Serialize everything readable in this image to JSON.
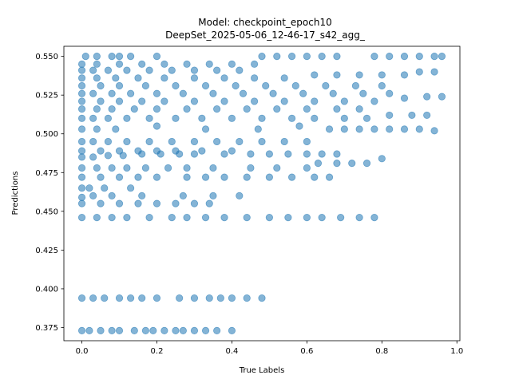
{
  "chart_data": {
    "type": "scatter",
    "title_line1": "Model: checkpoint_epoch10",
    "title_line2": "DeepSet_2025-05-06_12-46-17_s42_agg_",
    "xlabel": "True Labels",
    "ylabel": "Predictions",
    "xlim": [
      -0.048,
      1.008
    ],
    "ylim": [
      0.3665,
      0.5565
    ],
    "xticks": [
      "0.0",
      "0.2",
      "0.4",
      "0.6",
      "0.8",
      "1.0"
    ],
    "yticks": [
      "0.375",
      "0.400",
      "0.425",
      "0.450",
      "0.475",
      "0.500",
      "0.525",
      "0.550"
    ],
    "grid": false,
    "point_color": "#1f77b4",
    "point_alpha": 0.55,
    "series": [
      {
        "x_range": [
          0.0,
          0.96
        ],
        "points": [
          [
            0.0,
            0.373
          ],
          [
            0.02,
            0.373
          ],
          [
            0.05,
            0.373
          ],
          [
            0.08,
            0.373
          ],
          [
            0.1,
            0.373
          ],
          [
            0.14,
            0.373
          ],
          [
            0.17,
            0.373
          ],
          [
            0.19,
            0.373
          ],
          [
            0.22,
            0.373
          ],
          [
            0.25,
            0.373
          ],
          [
            0.27,
            0.373
          ],
          [
            0.3,
            0.373
          ],
          [
            0.33,
            0.373
          ],
          [
            0.36,
            0.373
          ],
          [
            0.4,
            0.373
          ],
          [
            0.0,
            0.394
          ],
          [
            0.03,
            0.394
          ],
          [
            0.06,
            0.394
          ],
          [
            0.1,
            0.394
          ],
          [
            0.13,
            0.394
          ],
          [
            0.16,
            0.394
          ],
          [
            0.2,
            0.394
          ],
          [
            0.26,
            0.394
          ],
          [
            0.3,
            0.394
          ],
          [
            0.34,
            0.394
          ],
          [
            0.37,
            0.394
          ],
          [
            0.4,
            0.394
          ],
          [
            0.44,
            0.394
          ],
          [
            0.48,
            0.394
          ],
          [
            0.0,
            0.446
          ],
          [
            0.04,
            0.446
          ],
          [
            0.08,
            0.446
          ],
          [
            0.12,
            0.446
          ],
          [
            0.18,
            0.446
          ],
          [
            0.24,
            0.446
          ],
          [
            0.28,
            0.446
          ],
          [
            0.33,
            0.446
          ],
          [
            0.38,
            0.446
          ],
          [
            0.44,
            0.446
          ],
          [
            0.5,
            0.446
          ],
          [
            0.55,
            0.446
          ],
          [
            0.6,
            0.446
          ],
          [
            0.64,
            0.446
          ],
          [
            0.69,
            0.446
          ],
          [
            0.74,
            0.446
          ],
          [
            0.78,
            0.446
          ],
          [
            0.0,
            0.455
          ],
          [
            0.05,
            0.455
          ],
          [
            0.1,
            0.455
          ],
          [
            0.15,
            0.455
          ],
          [
            0.2,
            0.455
          ],
          [
            0.25,
            0.455
          ],
          [
            0.3,
            0.455
          ],
          [
            0.34,
            0.455
          ],
          [
            0.0,
            0.459
          ],
          [
            0.03,
            0.46
          ],
          [
            0.08,
            0.46
          ],
          [
            0.16,
            0.46
          ],
          [
            0.27,
            0.46
          ],
          [
            0.35,
            0.46
          ],
          [
            0.42,
            0.46
          ],
          [
            0.0,
            0.465
          ],
          [
            0.02,
            0.465
          ],
          [
            0.06,
            0.465
          ],
          [
            0.13,
            0.465
          ],
          [
            0.0,
            0.472
          ],
          [
            0.05,
            0.472
          ],
          [
            0.1,
            0.472
          ],
          [
            0.15,
            0.472
          ],
          [
            0.2,
            0.472
          ],
          [
            0.28,
            0.472
          ],
          [
            0.33,
            0.472
          ],
          [
            0.38,
            0.472
          ],
          [
            0.44,
            0.472
          ],
          [
            0.5,
            0.472
          ],
          [
            0.56,
            0.472
          ],
          [
            0.62,
            0.472
          ],
          [
            0.66,
            0.472
          ],
          [
            0.0,
            0.478
          ],
          [
            0.04,
            0.478
          ],
          [
            0.08,
            0.478
          ],
          [
            0.12,
            0.478
          ],
          [
            0.17,
            0.478
          ],
          [
            0.23,
            0.478
          ],
          [
            0.28,
            0.478
          ],
          [
            0.35,
            0.478
          ],
          [
            0.45,
            0.478
          ],
          [
            0.52,
            0.478
          ],
          [
            0.6,
            0.478
          ],
          [
            0.63,
            0.481
          ],
          [
            0.68,
            0.481
          ],
          [
            0.72,
            0.481
          ],
          [
            0.76,
            0.481
          ],
          [
            0.8,
            0.484
          ],
          [
            0.0,
            0.485
          ],
          [
            0.03,
            0.485
          ],
          [
            0.07,
            0.486
          ],
          [
            0.11,
            0.486
          ],
          [
            0.16,
            0.487
          ],
          [
            0.21,
            0.487
          ],
          [
            0.26,
            0.487
          ],
          [
            0.3,
            0.487
          ],
          [
            0.38,
            0.487
          ],
          [
            0.45,
            0.487
          ],
          [
            0.5,
            0.487
          ],
          [
            0.55,
            0.487
          ],
          [
            0.6,
            0.487
          ],
          [
            0.64,
            0.487
          ],
          [
            0.68,
            0.487
          ],
          [
            0.0,
            0.489
          ],
          [
            0.05,
            0.489
          ],
          [
            0.1,
            0.489
          ],
          [
            0.15,
            0.489
          ],
          [
            0.2,
            0.489
          ],
          [
            0.25,
            0.489
          ],
          [
            0.32,
            0.489
          ],
          [
            0.4,
            0.489
          ],
          [
            0.0,
            0.495
          ],
          [
            0.03,
            0.495
          ],
          [
            0.07,
            0.495
          ],
          [
            0.12,
            0.495
          ],
          [
            0.18,
            0.495
          ],
          [
            0.24,
            0.495
          ],
          [
            0.3,
            0.495
          ],
          [
            0.36,
            0.495
          ],
          [
            0.42,
            0.495
          ],
          [
            0.48,
            0.495
          ],
          [
            0.54,
            0.495
          ],
          [
            0.6,
            0.495
          ],
          [
            0.0,
            0.503
          ],
          [
            0.04,
            0.503
          ],
          [
            0.09,
            0.503
          ],
          [
            0.2,
            0.505
          ],
          [
            0.33,
            0.503
          ],
          [
            0.47,
            0.503
          ],
          [
            0.58,
            0.505
          ],
          [
            0.66,
            0.503
          ],
          [
            0.7,
            0.503
          ],
          [
            0.74,
            0.503
          ],
          [
            0.78,
            0.503
          ],
          [
            0.82,
            0.503
          ],
          [
            0.86,
            0.503
          ],
          [
            0.9,
            0.503
          ],
          [
            0.94,
            0.502
          ],
          [
            0.0,
            0.51
          ],
          [
            0.03,
            0.51
          ],
          [
            0.07,
            0.51
          ],
          [
            0.12,
            0.51
          ],
          [
            0.18,
            0.51
          ],
          [
            0.25,
            0.51
          ],
          [
            0.32,
            0.51
          ],
          [
            0.4,
            0.51
          ],
          [
            0.48,
            0.51
          ],
          [
            0.56,
            0.51
          ],
          [
            0.62,
            0.51
          ],
          [
            0.7,
            0.51
          ],
          [
            0.76,
            0.51
          ],
          [
            0.82,
            0.512
          ],
          [
            0.88,
            0.512
          ],
          [
            0.92,
            0.512
          ],
          [
            0.0,
            0.516
          ],
          [
            0.04,
            0.516
          ],
          [
            0.08,
            0.516
          ],
          [
            0.14,
            0.516
          ],
          [
            0.2,
            0.516
          ],
          [
            0.28,
            0.516
          ],
          [
            0.36,
            0.516
          ],
          [
            0.44,
            0.516
          ],
          [
            0.52,
            0.516
          ],
          [
            0.6,
            0.516
          ],
          [
            0.68,
            0.516
          ],
          [
            0.74,
            0.516
          ],
          [
            0.0,
            0.521
          ],
          [
            0.05,
            0.521
          ],
          [
            0.1,
            0.521
          ],
          [
            0.16,
            0.521
          ],
          [
            0.22,
            0.521
          ],
          [
            0.3,
            0.521
          ],
          [
            0.38,
            0.521
          ],
          [
            0.46,
            0.521
          ],
          [
            0.54,
            0.521
          ],
          [
            0.62,
            0.521
          ],
          [
            0.7,
            0.521
          ],
          [
            0.78,
            0.521
          ],
          [
            0.86,
            0.523
          ],
          [
            0.92,
            0.524
          ],
          [
            0.96,
            0.524
          ],
          [
            0.0,
            0.526
          ],
          [
            0.03,
            0.526
          ],
          [
            0.08,
            0.526
          ],
          [
            0.13,
            0.526
          ],
          [
            0.2,
            0.526
          ],
          [
            0.27,
            0.526
          ],
          [
            0.35,
            0.526
          ],
          [
            0.43,
            0.526
          ],
          [
            0.51,
            0.526
          ],
          [
            0.59,
            0.526
          ],
          [
            0.67,
            0.526
          ],
          [
            0.75,
            0.526
          ],
          [
            0.82,
            0.526
          ],
          [
            0.0,
            0.531
          ],
          [
            0.05,
            0.531
          ],
          [
            0.1,
            0.531
          ],
          [
            0.17,
            0.531
          ],
          [
            0.25,
            0.531
          ],
          [
            0.33,
            0.531
          ],
          [
            0.41,
            0.531
          ],
          [
            0.49,
            0.531
          ],
          [
            0.57,
            0.531
          ],
          [
            0.65,
            0.531
          ],
          [
            0.73,
            0.531
          ],
          [
            0.8,
            0.531
          ],
          [
            0.0,
            0.536
          ],
          [
            0.04,
            0.536
          ],
          [
            0.09,
            0.536
          ],
          [
            0.15,
            0.536
          ],
          [
            0.22,
            0.536
          ],
          [
            0.3,
            0.536
          ],
          [
            0.38,
            0.536
          ],
          [
            0.46,
            0.536
          ],
          [
            0.54,
            0.536
          ],
          [
            0.62,
            0.538
          ],
          [
            0.68,
            0.538
          ],
          [
            0.74,
            0.538
          ],
          [
            0.8,
            0.538
          ],
          [
            0.86,
            0.538
          ],
          [
            0.9,
            0.54
          ],
          [
            0.94,
            0.54
          ],
          [
            0.0,
            0.541
          ],
          [
            0.03,
            0.541
          ],
          [
            0.07,
            0.541
          ],
          [
            0.12,
            0.541
          ],
          [
            0.18,
            0.541
          ],
          [
            0.24,
            0.541
          ],
          [
            0.3,
            0.541
          ],
          [
            0.36,
            0.541
          ],
          [
            0.42,
            0.541
          ],
          [
            0.0,
            0.545
          ],
          [
            0.04,
            0.545
          ],
          [
            0.1,
            0.545
          ],
          [
            0.16,
            0.545
          ],
          [
            0.22,
            0.545
          ],
          [
            0.28,
            0.545
          ],
          [
            0.34,
            0.545
          ],
          [
            0.4,
            0.545
          ],
          [
            0.46,
            0.545
          ],
          [
            0.01,
            0.55
          ],
          [
            0.04,
            0.55
          ],
          [
            0.08,
            0.55
          ],
          [
            0.1,
            0.55
          ],
          [
            0.13,
            0.55
          ],
          [
            0.2,
            0.55
          ],
          [
            0.48,
            0.55
          ],
          [
            0.52,
            0.55
          ],
          [
            0.56,
            0.55
          ],
          [
            0.6,
            0.55
          ],
          [
            0.64,
            0.55
          ],
          [
            0.68,
            0.55
          ],
          [
            0.78,
            0.55
          ],
          [
            0.82,
            0.55
          ],
          [
            0.86,
            0.55
          ],
          [
            0.9,
            0.55
          ],
          [
            0.94,
            0.55
          ],
          [
            0.96,
            0.55
          ]
        ]
      }
    ]
  }
}
